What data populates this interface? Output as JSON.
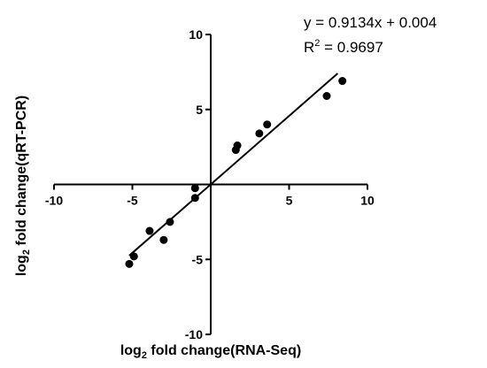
{
  "chart_data": {
    "type": "scatter",
    "xlabel": {
      "prefix": "log",
      "subscript": "2",
      "suffix": " fold change(RNA-Seq)"
    },
    "ylabel": {
      "prefix": "log",
      "subscript": "2",
      "suffix": " fold change(qRT-PCR)"
    },
    "xlim": [
      -10,
      10
    ],
    "ylim": [
      -10,
      10
    ],
    "xticks": [
      -10,
      -5,
      5,
      10
    ],
    "yticks": [
      -10,
      -5,
      5,
      10
    ],
    "grid": false,
    "axes_through_origin": true,
    "marker_color": "#000000",
    "points": [
      {
        "x": -5.2,
        "y": -5.3
      },
      {
        "x": -4.9,
        "y": -4.8
      },
      {
        "x": -3.9,
        "y": -3.1
      },
      {
        "x": -3.0,
        "y": -3.7
      },
      {
        "x": -2.6,
        "y": -2.5
      },
      {
        "x": -1.0,
        "y": -0.9
      },
      {
        "x": -1.0,
        "y": -0.25
      },
      {
        "x": 1.6,
        "y": 2.3
      },
      {
        "x": 1.7,
        "y": 2.6
      },
      {
        "x": 3.1,
        "y": 3.4
      },
      {
        "x": 3.6,
        "y": 4.0
      },
      {
        "x": 7.4,
        "y": 5.9
      },
      {
        "x": 8.4,
        "y": 6.9
      }
    ],
    "regression": {
      "slope": 0.9134,
      "intercept": 0.004,
      "x_range": [
        -5.2,
        8.1
      ]
    },
    "annotation": {
      "equation": "y = 0.9134x + 0.004",
      "r2_prefix": "R",
      "r2_superscript": "2",
      "r2_suffix": " = 0.9697"
    }
  }
}
